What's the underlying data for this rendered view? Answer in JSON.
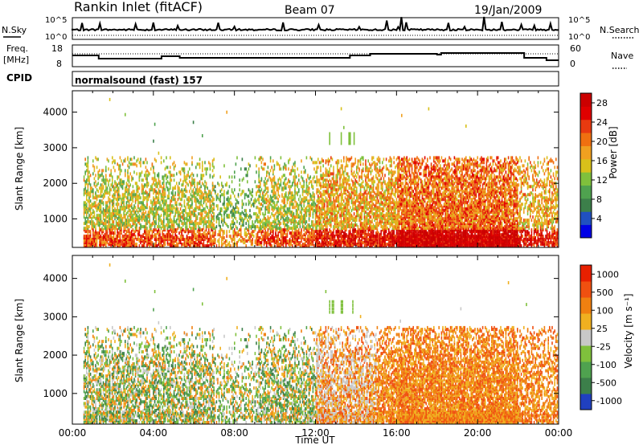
{
  "header": {
    "station": "Rankin Inlet (fitACF)",
    "beam": "Beam 07",
    "date": "19/Jan/2009"
  },
  "noise_panel": {
    "left_label": "N.Sky",
    "right_label": "N.Search",
    "ticks": [
      "10^5",
      "10^0"
    ]
  },
  "freq_panel": {
    "left_label_1": "Freq.",
    "left_label_2": "[MHz]",
    "left_ticks": [
      "18",
      "8"
    ],
    "right_label": "Nave",
    "right_ticks": [
      "60",
      "0"
    ]
  },
  "cpid": {
    "label": "CPID",
    "value": "normalsound (fast) 157"
  },
  "colors": {
    "power_scale": [
      "#0000e6",
      "#2050c0",
      "#3c7f4a",
      "#4fa24f",
      "#7fc03c",
      "#d8c01a",
      "#f0a020",
      "#f07010",
      "#e83a10",
      "#e00000",
      "#cc0000"
    ],
    "velocity_scale": [
      "#2040c0",
      "#3c7f4a",
      "#4fa24f",
      "#7fc03c",
      "#c8c8c8",
      "#f0b020",
      "#f08010",
      "#f05010",
      "#e82000"
    ]
  },
  "chart_data": [
    {
      "type": "heatmap",
      "name": "power-panel",
      "xlabel": "",
      "ylabel": "Slant Range [km]",
      "xlim_hours": [
        0,
        24
      ],
      "ylim": [
        200,
        4600
      ],
      "yticks": [
        "1000",
        "2000",
        "3000",
        "4000"
      ],
      "colorbar": {
        "label": "Power [dB]",
        "ticks": [
          "4",
          "8",
          "12",
          "16",
          "20",
          "24",
          "28"
        ],
        "range": [
          0,
          30
        ]
      }
    },
    {
      "type": "heatmap",
      "name": "velocity-panel",
      "xlabel": "Time UT",
      "ylabel": "Slant Range [km]",
      "xticks": [
        "00:00",
        "04:00",
        "08:00",
        "12:00",
        "16:00",
        "20:00",
        "00:00"
      ],
      "xlim_hours": [
        0,
        24
      ],
      "ylim": [
        200,
        4600
      ],
      "yticks": [
        "1000",
        "2000",
        "3000",
        "4000"
      ],
      "colorbar": {
        "label": "Velocity [m s⁻¹]",
        "ticks": [
          "1000",
          "500",
          "100",
          "25",
          "-25",
          "-100",
          "-500",
          "-1000"
        ]
      }
    }
  ]
}
